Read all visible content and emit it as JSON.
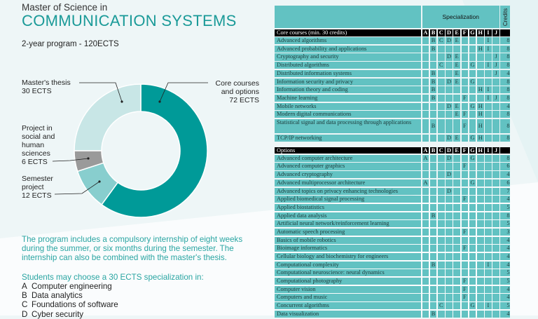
{
  "header": {
    "subtitle": "Master of Science in",
    "title": "COMMUNICATION SYSTEMS",
    "program": "2-year program - 120ECTS"
  },
  "donut": {
    "colors": {
      "core": "#009a98",
      "semester": "#88cece",
      "shs": "#9a9a9a",
      "thesis": "#c8e6e6"
    },
    "segments": [
      {
        "key": "core",
        "label": [
          "Core courses",
          "and options",
          "72 ECTS"
        ],
        "value": 72
      },
      {
        "key": "semester",
        "label": [
          "Semester",
          "project",
          "12 ECTS"
        ],
        "value": 12
      },
      {
        "key": "shs",
        "label": [
          "Project in",
          "social and",
          "human",
          "sciences",
          "6 ECTS"
        ],
        "value": 6
      },
      {
        "key": "thesis",
        "label": [
          "Master's thesis",
          "30 ECTS"
        ],
        "value": 30
      }
    ]
  },
  "internship_text": "The program includes a compulsory internship of eight weeks during the summer, or six months during the semester. The internship can also be combined with the master's thesis.",
  "specializations": {
    "intro": "Students may choose a 30 ECTS specialization in:",
    "items": [
      {
        "key": "A",
        "name": "Computer engineering"
      },
      {
        "key": "B",
        "name": "Data analytics"
      },
      {
        "key": "C",
        "name": "Foundations of software"
      },
      {
        "key": "D",
        "name": "Cyber security"
      }
    ]
  },
  "table": {
    "specialization_header": "Specialization",
    "credits_header": "Credits",
    "columns": [
      "A",
      "B",
      "C",
      "D",
      "E",
      "F",
      "G",
      "H",
      "I",
      "J"
    ],
    "sections": [
      {
        "title": "Core courses (min. 30 credits)",
        "rows": [
          {
            "name": "Advanced algorithms",
            "spec": "BCDEI",
            "credits": "8"
          },
          {
            "name": "Advanced probability and applications",
            "spec": "BHI",
            "credits": "8"
          },
          {
            "name": "Cryptography and security",
            "spec": "DEJ",
            "credits": "8"
          },
          {
            "name": "Distributed algorithms",
            "spec": "CEGIJ",
            "credits": "8"
          },
          {
            "name": "Distributed information systems",
            "spec": "BEJ",
            "credits": "4"
          },
          {
            "name": "Information security and privacy",
            "spec": "BDEG",
            "credits": "8"
          },
          {
            "name": "Information theory and coding",
            "spec": "BHI",
            "credits": "8"
          },
          {
            "name": "Machine learning",
            "spec": "BFIJ",
            "credits": "8"
          },
          {
            "name": "Mobile networks",
            "spec": "DEGH",
            "credits": "4"
          },
          {
            "name": "Modern digital communications",
            "spec": "EFH",
            "credits": "8"
          },
          {
            "name": "Statistical signal and data processing through applications",
            "spec": "BFH",
            "credits": "8"
          },
          {
            "name": "TCP/IP networking",
            "spec": "DEGH",
            "credits": "8"
          }
        ]
      },
      {
        "title": "Options",
        "rows": [
          {
            "name": "Advanced computer architecture",
            "spec": "ADG",
            "credits": "8"
          },
          {
            "name": "Advanced computer graphics",
            "spec": "F",
            "credits": "6"
          },
          {
            "name": "Advanced cryptography",
            "spec": "D",
            "credits": "4"
          },
          {
            "name": "Advanced multiprocessor architecture",
            "spec": "AG",
            "credits": "6"
          },
          {
            "name": "Advanced topics on privacy enhancing technologies",
            "spec": "D",
            "credits": "7"
          },
          {
            "name": "Applied biomedical signal processing",
            "spec": "F",
            "credits": "4"
          },
          {
            "name": "Applied biostatistics",
            "spec": "",
            "credits": "5"
          },
          {
            "name": "Applied data analysis",
            "spec": "B",
            "credits": "8"
          },
          {
            "name": "Artificial neural network/reinforcement learning",
            "spec": "",
            "credits": "5"
          },
          {
            "name": "Automatic speech processing",
            "spec": "F",
            "credits": "3"
          },
          {
            "name": "Basics of mobile robotics",
            "spec": "",
            "credits": "4"
          },
          {
            "name": "Bioimage informatics",
            "spec": "F",
            "credits": "4"
          },
          {
            "name": "Cellular biology and biochemistry for engineers",
            "spec": "",
            "credits": "4"
          },
          {
            "name": "Computational complexity",
            "spec": "BI",
            "credits": "4"
          },
          {
            "name": "Computational neuroscience: neural dynamics",
            "spec": "",
            "credits": "5"
          },
          {
            "name": "Computational photography",
            "spec": "F",
            "credits": "5"
          },
          {
            "name": "Computer vision",
            "spec": "F",
            "credits": "4"
          },
          {
            "name": "Computers and music",
            "spec": "F",
            "credits": "4"
          },
          {
            "name": "Concurrent algorithms",
            "spec": "CGI",
            "credits": "5"
          },
          {
            "name": "Data visualization",
            "spec": "B",
            "credits": "4"
          }
        ]
      }
    ]
  }
}
